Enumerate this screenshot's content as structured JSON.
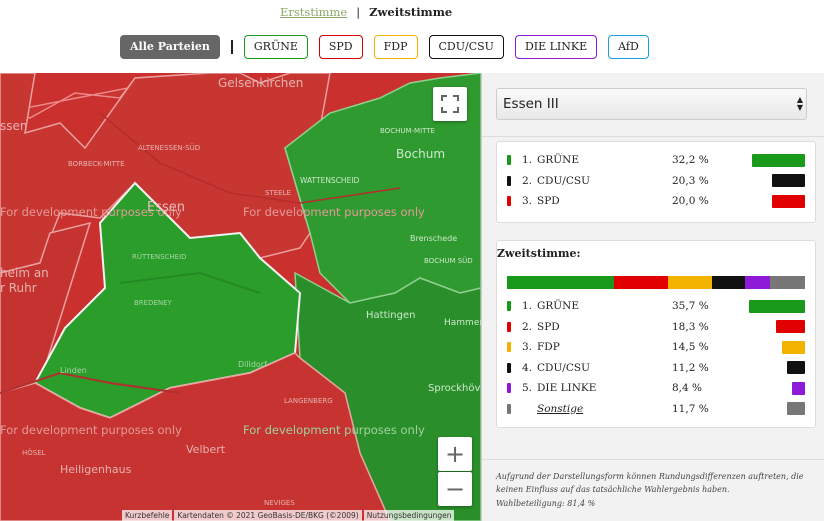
{
  "vote_switch": {
    "erst": "Erststimme",
    "separator": "|",
    "zweit": "Zweitstimme"
  },
  "filters": [
    "Alle Parteien",
    "GRÜNE",
    "SPD",
    "FDP",
    "CDU/CSU",
    "DIE LINKE",
    "AfD"
  ],
  "filter_colors": [
    "#666666",
    "#1a9a1a",
    "#d40000",
    "#f2b200",
    "#111111",
    "#8c1ad6",
    "#1aa0e0"
  ],
  "map": {
    "labels": [
      "Gelsenkirchen",
      "Essen",
      "Bochum",
      "Hattingen",
      "Velbert",
      "Heiligenhaus",
      "Sprockhövel",
      "Hammer",
      "Brenschede",
      "heim an",
      "r Ruhr",
      "BOCHUM-MITTE",
      "WATTENSCHEID",
      "STEELE",
      "RÜTTENSCHEID",
      "BREDENEY",
      "ALTENESSEN-SÜD",
      "BORBECK-MITTE",
      "LANGENBERG",
      "BOCHUM SÜD",
      "HÖSEL",
      "NEVIGES",
      "Linden",
      "Dilldorf",
      "ssen"
    ],
    "watermark": "For development purposes only",
    "zoom_in": "+",
    "zoom_out": "−",
    "attribution": [
      "Kurzbefehle",
      "Kartendaten © 2021 GeoBasis-DE/BKG (©2009)",
      "Nutzungsbedingungen"
    ]
  },
  "panel": {
    "district": "Essen III",
    "erststimme_results": [
      {
        "rank": "1.",
        "party": "GRÜNE",
        "pct": "32,2 %",
        "value": 32.2,
        "color": "#1a9a1a"
      },
      {
        "rank": "2.",
        "party": "CDU/CSU",
        "pct": "20,3 %",
        "value": 20.3,
        "color": "#111111"
      },
      {
        "rank": "3.",
        "party": "SPD",
        "pct": "20,0 %",
        "value": 20.0,
        "color": "#e00000"
      }
    ],
    "zweitstimme_title": "Zweitstimme:",
    "zweitstimme_results": [
      {
        "rank": "1.",
        "party": "GRÜNE",
        "pct": "35,7 %",
        "value": 35.7,
        "color": "#1a9a1a"
      },
      {
        "rank": "2.",
        "party": "SPD",
        "pct": "18,3 %",
        "value": 18.3,
        "color": "#e00000"
      },
      {
        "rank": "3.",
        "party": "FDP",
        "pct": "14,5 %",
        "value": 14.5,
        "color": "#f2b200"
      },
      {
        "rank": "4.",
        "party": "CDU/CSU",
        "pct": "11,2 %",
        "value": 11.2,
        "color": "#111111"
      },
      {
        "rank": "5.",
        "party": "DIE LINKE",
        "pct": "8,4 %",
        "value": 8.4,
        "color": "#8c1ad6"
      },
      {
        "rank": "",
        "party": "Sonstige",
        "pct": "11,7 %",
        "value": 11.7,
        "color": "#777777"
      }
    ],
    "note": "Aufgrund der Darstellungsform können Rundungsdifferenzen auftreten, die keinen Einfluss auf das tatsächliche Wahlergebnis haben.",
    "turnout": "Wahlbeteiligung: 81,4 %"
  }
}
